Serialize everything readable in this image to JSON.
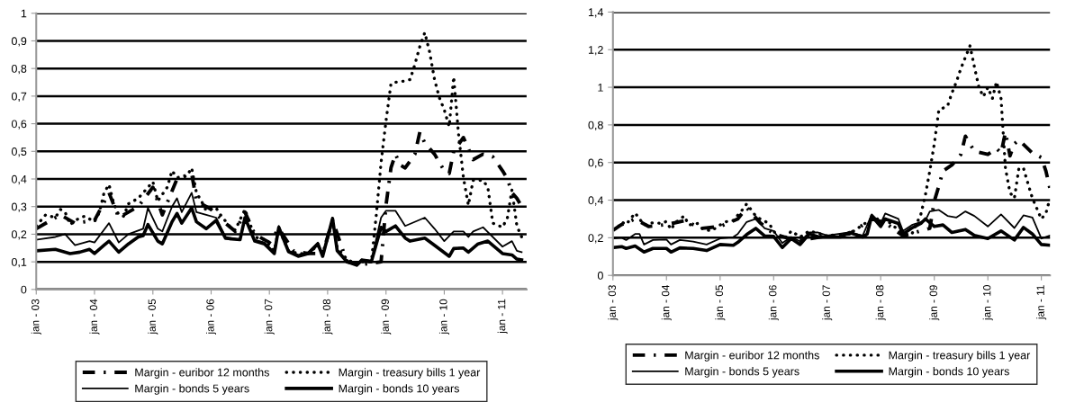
{
  "chart_data": [
    {
      "type": "line",
      "xlim": [
        "2003-01",
        "2011-06"
      ],
      "ylim": [
        0,
        1
      ],
      "xticks": [
        {
          "value": "2003-01",
          "label": "jan - 03"
        },
        {
          "value": "2004-01",
          "label": "jan - 04"
        },
        {
          "value": "2005-01",
          "label": "jan - 05"
        },
        {
          "value": "2006-01",
          "label": "jan - 06"
        },
        {
          "value": "2007-01",
          "label": "jan - 07"
        },
        {
          "value": "2008-01",
          "label": "jan - 08"
        },
        {
          "value": "2009-01",
          "label": "jan - 09"
        },
        {
          "value": "2010-01",
          "label": "jan - 10"
        },
        {
          "value": "2011-01",
          "label": "jan - 11"
        }
      ],
      "yticks": [
        0,
        {
          "value": 0.1,
          "label": "0,1"
        },
        {
          "value": 0.2,
          "label": "0,2"
        },
        {
          "value": 0.3,
          "label": "0,3"
        },
        {
          "value": 0.4,
          "label": "0,4"
        },
        {
          "value": 0.5,
          "label": "0,5"
        },
        {
          "value": 0.6,
          "label": "0,6"
        },
        {
          "value": 0.7,
          "label": "0,7"
        },
        {
          "value": 0.8,
          "label": "0,8"
        },
        {
          "value": 0.9,
          "label": "0,9"
        },
        1
      ],
      "grid": "y",
      "legend": "bottom",
      "marker": "none",
      "series": [
        {
          "name": "Margin - euribor 12 months",
          "color": "#000000",
          "line_style": "dashdot",
          "x": [
            "2003-01",
            "2003-06",
            "2003-09",
            "2004-01",
            "2004-04",
            "2004-06",
            "2004-10",
            "2005-01",
            "2005-03",
            "2005-06",
            "2005-09",
            "2005-10",
            "2006-01",
            "2006-04",
            "2006-06",
            "2006-08",
            "2006-10",
            "2007-01",
            "2007-03",
            "2007-06",
            "2007-09",
            "2007-12",
            "2008-02",
            "2008-05",
            "2008-08",
            "2008-12",
            "2009-01",
            "2009-02",
            "2009-03",
            "2009-04",
            "2009-05",
            "2009-07",
            "2009-08",
            "2009-09",
            "2009-11",
            "2009-12",
            "2010-01",
            "2010-02",
            "2010-03",
            "2010-05",
            "2010-07",
            "2010-09",
            "2010-11",
            "2011-01",
            "2011-02",
            "2011-03",
            "2011-04",
            "2011-05"
          ],
          "values": [
            0.22,
            0.27,
            0.24,
            0.25,
            0.35,
            0.26,
            0.3,
            0.37,
            0.27,
            0.4,
            0.42,
            0.32,
            0.29,
            0.24,
            0.21,
            0.28,
            0.2,
            0.17,
            0.22,
            0.14,
            0.13,
            0.13,
            0.25,
            0.1,
            0.09,
            0.1,
            0.305,
            0.44,
            0.49,
            0.45,
            0.44,
            0.49,
            0.57,
            0.53,
            0.49,
            0.46,
            0.43,
            0.42,
            0.5,
            0.55,
            0.47,
            0.49,
            0.48,
            0.43,
            0.4,
            0.35,
            0.33,
            0.3
          ]
        },
        {
          "name": "Margin - treasury bills 1 year",
          "color": "#000000",
          "line_style": "dotted",
          "x": [
            "2003-01",
            "2003-03",
            "2003-05",
            "2003-06",
            "2003-07",
            "2003-08",
            "2003-10",
            "2003-11",
            "2004-01",
            "2004-02",
            "2004-03",
            "2004-04",
            "2004-05",
            "2004-06",
            "2004-07",
            "2004-08",
            "2004-10",
            "2004-11",
            "2005-01",
            "2005-02",
            "2005-04",
            "2005-05",
            "2005-06",
            "2005-08",
            "2005-09",
            "2005-10",
            "2005-11",
            "2005-12",
            "2006-02",
            "2006-03",
            "2006-05",
            "2006-06",
            "2006-08",
            "2006-10",
            "2006-12",
            "2007-02",
            "2007-03",
            "2007-05",
            "2007-07",
            "2007-09",
            "2007-11",
            "2007-12",
            "2008-02",
            "2008-03",
            "2008-05",
            "2008-07",
            "2008-08",
            "2008-10",
            "2008-11",
            "2008-12",
            "2009-01",
            "2009-02",
            "2009-03",
            "2009-05",
            "2009-06",
            "2009-07",
            "2009-08",
            "2009-09",
            "2009-10",
            "2009-11",
            "2009-12",
            "2010-01",
            "2010-02",
            "2010-03",
            "2010-04",
            "2010-05",
            "2010-06",
            "2010-07",
            "2010-09",
            "2010-10",
            "2010-11",
            "2011-01",
            "2011-02",
            "2011-03",
            "2011-04",
            "2011-05"
          ],
          "values": [
            0.23,
            0.27,
            0.26,
            0.29,
            0.28,
            0.235,
            0.26,
            0.265,
            0.245,
            0.28,
            0.35,
            0.38,
            0.31,
            0.27,
            0.265,
            0.31,
            0.33,
            0.35,
            0.39,
            0.32,
            0.37,
            0.43,
            0.405,
            0.41,
            0.44,
            0.35,
            0.32,
            0.285,
            0.295,
            0.27,
            0.225,
            0.215,
            0.29,
            0.19,
            0.18,
            0.14,
            0.22,
            0.14,
            0.13,
            0.13,
            0.16,
            0.13,
            0.25,
            0.15,
            0.11,
            0.09,
            0.1,
            0.1,
            0.27,
            0.46,
            0.61,
            0.745,
            0.75,
            0.755,
            0.76,
            0.815,
            0.88,
            0.93,
            0.86,
            0.76,
            0.695,
            0.65,
            0.59,
            0.77,
            0.56,
            0.405,
            0.305,
            0.395,
            0.395,
            0.37,
            0.24,
            0.225,
            0.26,
            0.36,
            0.23,
            0.19
          ]
        },
        {
          "name": "Margin - bonds 5 years",
          "color": "#000000",
          "line_style": "solid",
          "x": [
            "2003-01",
            "2003-05",
            "2003-07",
            "2003-09",
            "2003-12",
            "2004-01",
            "2004-04",
            "2004-06",
            "2004-08",
            "2004-11",
            "2004-12",
            "2005-02",
            "2005-03",
            "2005-05",
            "2005-06",
            "2005-07",
            "2005-09",
            "2005-10",
            "2005-12",
            "2006-02",
            "2006-04",
            "2006-07",
            "2006-08",
            "2006-10",
            "2006-12",
            "2007-02",
            "2007-03",
            "2007-05",
            "2007-07",
            "2007-09",
            "2007-11",
            "2007-12",
            "2008-02",
            "2008-03",
            "2008-05",
            "2008-07",
            "2008-08",
            "2008-10",
            "2008-12",
            "2009-01",
            "2009-03",
            "2009-05",
            "2009-09",
            "2009-11",
            "2010-01",
            "2010-03",
            "2010-05",
            "2010-06",
            "2010-07",
            "2010-09",
            "2011-01",
            "2011-03",
            "2011-04",
            "2011-05"
          ],
          "values": [
            0.18,
            0.19,
            0.2,
            0.16,
            0.175,
            0.17,
            0.24,
            0.17,
            0.2,
            0.22,
            0.295,
            0.22,
            0.21,
            0.3,
            0.33,
            0.28,
            0.35,
            0.28,
            0.27,
            0.26,
            0.19,
            0.18,
            0.26,
            0.18,
            0.17,
            0.135,
            0.23,
            0.14,
            0.125,
            0.135,
            0.17,
            0.125,
            0.26,
            0.145,
            0.105,
            0.09,
            0.11,
            0.105,
            0.26,
            0.285,
            0.285,
            0.23,
            0.26,
            0.22,
            0.175,
            0.21,
            0.21,
            0.19,
            0.21,
            0.225,
            0.155,
            0.175,
            0.14,
            0.135
          ]
        },
        {
          "name": "Margin - bonds 10 years",
          "color": "#000000",
          "line_style": "solid",
          "x": [
            "2003-01",
            "2003-05",
            "2003-08",
            "2003-10",
            "2003-12",
            "2004-01",
            "2004-03",
            "2004-04",
            "2004-06",
            "2004-08",
            "2004-10",
            "2004-11",
            "2004-12",
            "2005-02",
            "2005-03",
            "2005-05",
            "2005-06",
            "2005-07",
            "2005-09",
            "2005-10",
            "2005-12",
            "2006-02",
            "2006-04",
            "2006-07",
            "2006-08",
            "2006-10",
            "2006-12",
            "2007-02",
            "2007-03",
            "2007-05",
            "2007-07",
            "2007-09",
            "2007-11",
            "2007-12",
            "2008-02",
            "2008-03",
            "2008-05",
            "2008-07",
            "2008-08",
            "2008-10",
            "2008-12",
            "2009-01",
            "2009-03",
            "2009-05",
            "2009-06",
            "2009-09",
            "2009-11",
            "2010-02",
            "2010-03",
            "2010-05",
            "2010-06",
            "2010-08",
            "2010-10",
            "2011-01",
            "2011-03",
            "2011-04",
            "2011-05"
          ],
          "values": [
            0.14,
            0.145,
            0.13,
            0.135,
            0.145,
            0.13,
            0.16,
            0.175,
            0.135,
            0.165,
            0.19,
            0.195,
            0.235,
            0.175,
            0.165,
            0.245,
            0.275,
            0.24,
            0.295,
            0.245,
            0.22,
            0.25,
            0.185,
            0.18,
            0.26,
            0.175,
            0.165,
            0.13,
            0.225,
            0.137,
            0.12,
            0.13,
            0.165,
            0.12,
            0.257,
            0.14,
            0.1,
            0.088,
            0.105,
            0.1,
            0.225,
            0.21,
            0.23,
            0.186,
            0.175,
            0.186,
            0.16,
            0.12,
            0.148,
            0.15,
            0.135,
            0.165,
            0.175,
            0.13,
            0.125,
            0.11,
            0.107
          ]
        }
      ]
    },
    {
      "type": "line",
      "xlim": [
        "2003-01",
        "2011-03"
      ],
      "ylim": [
        0,
        1.4
      ],
      "xticks": [
        {
          "value": "2003-01",
          "label": "jan - 03"
        },
        {
          "value": "2004-01",
          "label": "jan - 04"
        },
        {
          "value": "2005-01",
          "label": "jan - 05"
        },
        {
          "value": "2006-01",
          "label": "jan - 06"
        },
        {
          "value": "2007-01",
          "label": "jan - 07"
        },
        {
          "value": "2008-01",
          "label": "jan - 08"
        },
        {
          "value": "2009-01",
          "label": "jan - 09"
        },
        {
          "value": "2010-01",
          "label": "jan - 10"
        },
        {
          "value": "2011-01",
          "label": "jan - 11"
        }
      ],
      "yticks": [
        0,
        {
          "value": 0.2,
          "label": "0,2"
        },
        {
          "value": 0.4,
          "label": "0,4"
        },
        {
          "value": 0.6,
          "label": "0,6"
        },
        {
          "value": 0.8,
          "label": "0,8"
        },
        1,
        {
          "value": 1.2,
          "label": "1,2"
        },
        {
          "value": 1.4,
          "label": "1,4"
        }
      ],
      "grid": "y",
      "legend": "bottom",
      "marker": "none",
      "series": [
        {
          "name": "Margin - euribor 12 months",
          "color": "#000000",
          "line_style": "dashdot",
          "x": [
            "2003-01",
            "2003-03",
            "2003-06",
            "2003-09",
            "2004-01",
            "2004-05",
            "2004-09",
            "2005-01",
            "2005-05",
            "2005-07",
            "2005-10",
            "2006-01",
            "2006-04",
            "2006-08",
            "2007-01",
            "2007-06",
            "2007-11",
            "2008-02",
            "2008-06",
            "2008-09",
            "2008-12",
            "2009-01",
            "2009-02",
            "2009-03",
            "2009-05",
            "2009-07",
            "2009-08",
            "2009-10",
            "2010-01",
            "2010-03",
            "2010-04",
            "2010-05",
            "2010-06",
            "2010-07",
            "2010-08",
            "2010-11",
            "2011-01",
            "2011-02",
            "2011-03"
          ],
          "values": [
            0.24,
            0.27,
            0.3,
            0.26,
            0.27,
            0.29,
            0.25,
            0.26,
            0.3,
            0.36,
            0.28,
            0.22,
            0.2,
            0.19,
            0.21,
            0.22,
            0.3,
            0.28,
            0.21,
            0.23,
            0.25,
            0.395,
            0.475,
            0.555,
            0.587,
            0.643,
            0.74,
            0.66,
            0.643,
            0.675,
            0.65,
            0.76,
            0.635,
            0.7,
            0.72,
            0.65,
            0.627,
            0.555,
            0.46
          ]
        },
        {
          "name": "Margin - treasury bills 1 year",
          "color": "#000000",
          "line_style": "dotted",
          "x": [
            "2003-01",
            "2003-02",
            "2003-03",
            "2003-04",
            "2003-06",
            "2003-08",
            "2003-10",
            "2003-12",
            "2004-01",
            "2004-02",
            "2004-03",
            "2004-05",
            "2004-06",
            "2004-08",
            "2004-09",
            "2004-11",
            "2005-01",
            "2005-03",
            "2005-04",
            "2005-06",
            "2005-07",
            "2005-08",
            "2005-09",
            "2005-10",
            "2005-12",
            "2006-01",
            "2006-02",
            "2006-04",
            "2006-05",
            "2006-07",
            "2006-09",
            "2007-01",
            "2007-06",
            "2007-11",
            "2008-02",
            "2008-06",
            "2008-08",
            "2008-10",
            "2008-11",
            "2008-12",
            "2009-01",
            "2009-02",
            "2009-04",
            "2009-05",
            "2009-06",
            "2009-07",
            "2009-09",
            "2009-10",
            "2009-11",
            "2009-12",
            "2010-01",
            "2010-02",
            "2010-03",
            "2010-04",
            "2010-05",
            "2010-06",
            "2010-07",
            "2010-08",
            "2010-09",
            "2010-10",
            "2010-11",
            "2011-01",
            "2011-02",
            "2011-03"
          ],
          "values": [
            0.244,
            0.252,
            0.284,
            0.27,
            0.332,
            0.268,
            0.28,
            0.276,
            0.287,
            0.244,
            0.28,
            0.316,
            0.268,
            0.276,
            0.249,
            0.236,
            0.268,
            0.292,
            0.292,
            0.348,
            0.38,
            0.348,
            0.316,
            0.3,
            0.276,
            0.236,
            0.204,
            0.204,
            0.236,
            0.204,
            0.236,
            0.21,
            0.22,
            0.3,
            0.3,
            0.22,
            0.22,
            0.324,
            0.427,
            0.555,
            0.7,
            0.88,
            0.9,
            0.97,
            1.03,
            1.1,
            1.22,
            1.11,
            1.0,
            0.95,
            1.0,
            0.94,
            1.03,
            0.94,
            0.57,
            0.44,
            0.41,
            0.57,
            0.57,
            0.49,
            0.41,
            0.3,
            0.33,
            0.41
          ]
        },
        {
          "name": "Margin - bonds 5 years",
          "color": "#000000",
          "line_style": "solid",
          "x": [
            "2003-01",
            "2003-03",
            "2003-04",
            "2003-06",
            "2003-07",
            "2003-08",
            "2003-10",
            "2004-01",
            "2004-02",
            "2004-04",
            "2004-07",
            "2004-10",
            "2005-01",
            "2005-04",
            "2005-05",
            "2005-07",
            "2005-09",
            "2005-11",
            "2006-01",
            "2006-03",
            "2006-05",
            "2006-07",
            "2006-09",
            "2006-11",
            "2007-01",
            "2007-06",
            "2007-09",
            "2007-11",
            "2008-01",
            "2008-02",
            "2008-05",
            "2008-06",
            "2008-08",
            "2008-11",
            "2008-12",
            "2009-02",
            "2009-04",
            "2009-06",
            "2009-08",
            "2009-10",
            "2010-01",
            "2010-04",
            "2010-07",
            "2010-09",
            "2010-11",
            "2011-01",
            "2011-03"
          ],
          "values": [
            0.196,
            0.2,
            0.188,
            0.22,
            0.22,
            0.164,
            0.188,
            0.19,
            0.164,
            0.188,
            0.18,
            0.164,
            0.196,
            0.204,
            0.22,
            0.284,
            0.3,
            0.25,
            0.236,
            0.172,
            0.204,
            0.18,
            0.228,
            0.228,
            0.212,
            0.228,
            0.212,
            0.324,
            0.276,
            0.329,
            0.3,
            0.236,
            0.268,
            0.292,
            0.34,
            0.348,
            0.316,
            0.308,
            0.34,
            0.316,
            0.26,
            0.324,
            0.252,
            0.319,
            0.308,
            0.196,
            0.212
          ]
        },
        {
          "name": "Margin - bonds 10 years",
          "color": "#000000",
          "line_style": "solid",
          "x": [
            "2003-01",
            "2003-03",
            "2003-04",
            "2003-06",
            "2003-08",
            "2003-10",
            "2004-01",
            "2004-02",
            "2004-04",
            "2004-07",
            "2004-10",
            "2005-01",
            "2005-04",
            "2005-05",
            "2005-07",
            "2005-09",
            "2005-11",
            "2006-01",
            "2006-03",
            "2006-05",
            "2006-07",
            "2006-09",
            "2006-11",
            "2007-01",
            "2007-04",
            "2007-06",
            "2007-09",
            "2007-10",
            "2007-11",
            "2008-01",
            "2008-02",
            "2008-05",
            "2008-06",
            "2008-08",
            "2008-10",
            "2008-11",
            "2009-01",
            "2009-03",
            "2009-05",
            "2009-08",
            "2009-10",
            "2010-01",
            "2010-04",
            "2010-07",
            "2010-09",
            "2010-11",
            "2011-01",
            "2011-03"
          ],
          "values": [
            0.148,
            0.153,
            0.143,
            0.156,
            0.124,
            0.143,
            0.143,
            0.124,
            0.146,
            0.143,
            0.132,
            0.164,
            0.16,
            0.175,
            0.217,
            0.25,
            0.21,
            0.207,
            0.148,
            0.196,
            0.164,
            0.22,
            0.205,
            0.204,
            0.204,
            0.228,
            0.204,
            0.22,
            0.316,
            0.26,
            0.3,
            0.276,
            0.22,
            0.252,
            0.276,
            0.3,
            0.26,
            0.268,
            0.228,
            0.244,
            0.212,
            0.196,
            0.236,
            0.188,
            0.255,
            0.22,
            0.164,
            0.16
          ]
        }
      ]
    }
  ]
}
